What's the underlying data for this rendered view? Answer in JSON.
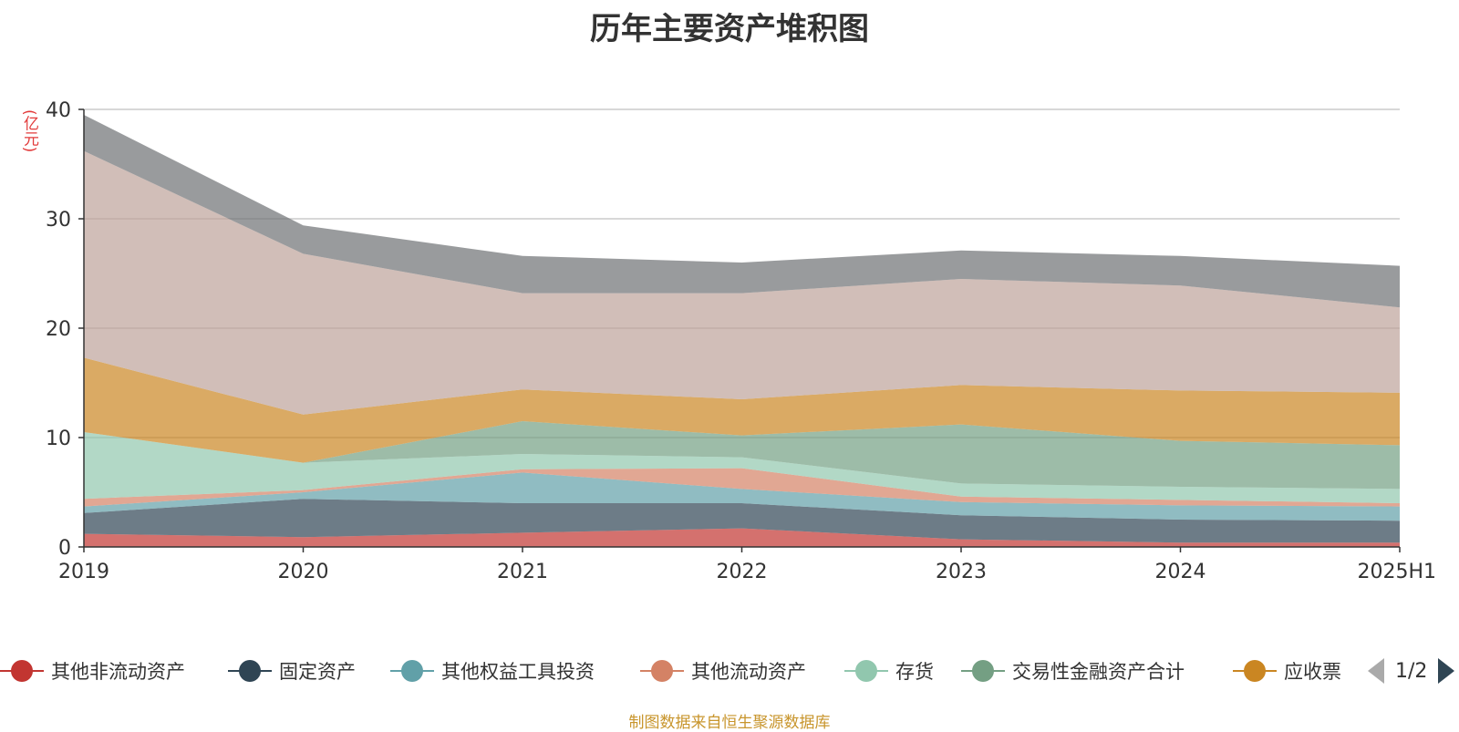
{
  "chart_data": {
    "type": "area",
    "stacked": true,
    "title": "历年主要资产堆积图",
    "ylabel": "(亿元)",
    "categories": [
      "2019",
      "2020",
      "2021",
      "2022",
      "2023",
      "2024",
      "2025H1"
    ],
    "ylim": [
      0,
      40
    ],
    "yticks": [
      0,
      10,
      20,
      30,
      40
    ],
    "grid": true,
    "legend_position": "bottom",
    "series": [
      {
        "name": "其他非流动资产",
        "color": "#c23531",
        "values": [
          1.2,
          0.9,
          1.3,
          1.7,
          0.7,
          0.4,
          0.4
        ]
      },
      {
        "name": "固定资产",
        "color": "#2f4554",
        "values": [
          1.9,
          3.5,
          2.7,
          2.3,
          2.2,
          2.1,
          2.0
        ]
      },
      {
        "name": "其他权益工具投资",
        "color": "#61a0a8",
        "values": [
          0.6,
          0.6,
          2.8,
          1.3,
          1.2,
          1.3,
          1.3
        ]
      },
      {
        "name": "其他流动资产",
        "color": "#d48265",
        "values": [
          0.7,
          0.2,
          0.3,
          1.9,
          0.5,
          0.5,
          0.3
        ]
      },
      {
        "name": "存货",
        "color": "#91c7ae",
        "values": [
          6.1,
          2.5,
          1.4,
          1.0,
          1.2,
          1.2,
          1.3
        ]
      },
      {
        "name": "交易性金融资产合计",
        "color": "#749f83",
        "values": [
          0,
          0,
          3.0,
          2.0,
          5.4,
          4.2,
          4.0
        ]
      },
      {
        "name": "应收票",
        "color": "#ca8622",
        "values": [
          6.8,
          4.4,
          2.9,
          3.3,
          3.6,
          4.6,
          4.8
        ]
      },
      {
        "name": "",
        "color": "#bda29a",
        "values": [
          18.9,
          14.7,
          8.8,
          9.7,
          9.7,
          9.6,
          7.8
        ]
      },
      {
        "name": "",
        "color": "#6e7074",
        "values": [
          3.3,
          2.6,
          3.4,
          2.8,
          2.6,
          2.7,
          3.8
        ]
      }
    ]
  },
  "legend": {
    "pager_text": "1/2"
  },
  "source_text": "制图数据来自恒生聚源数据库"
}
